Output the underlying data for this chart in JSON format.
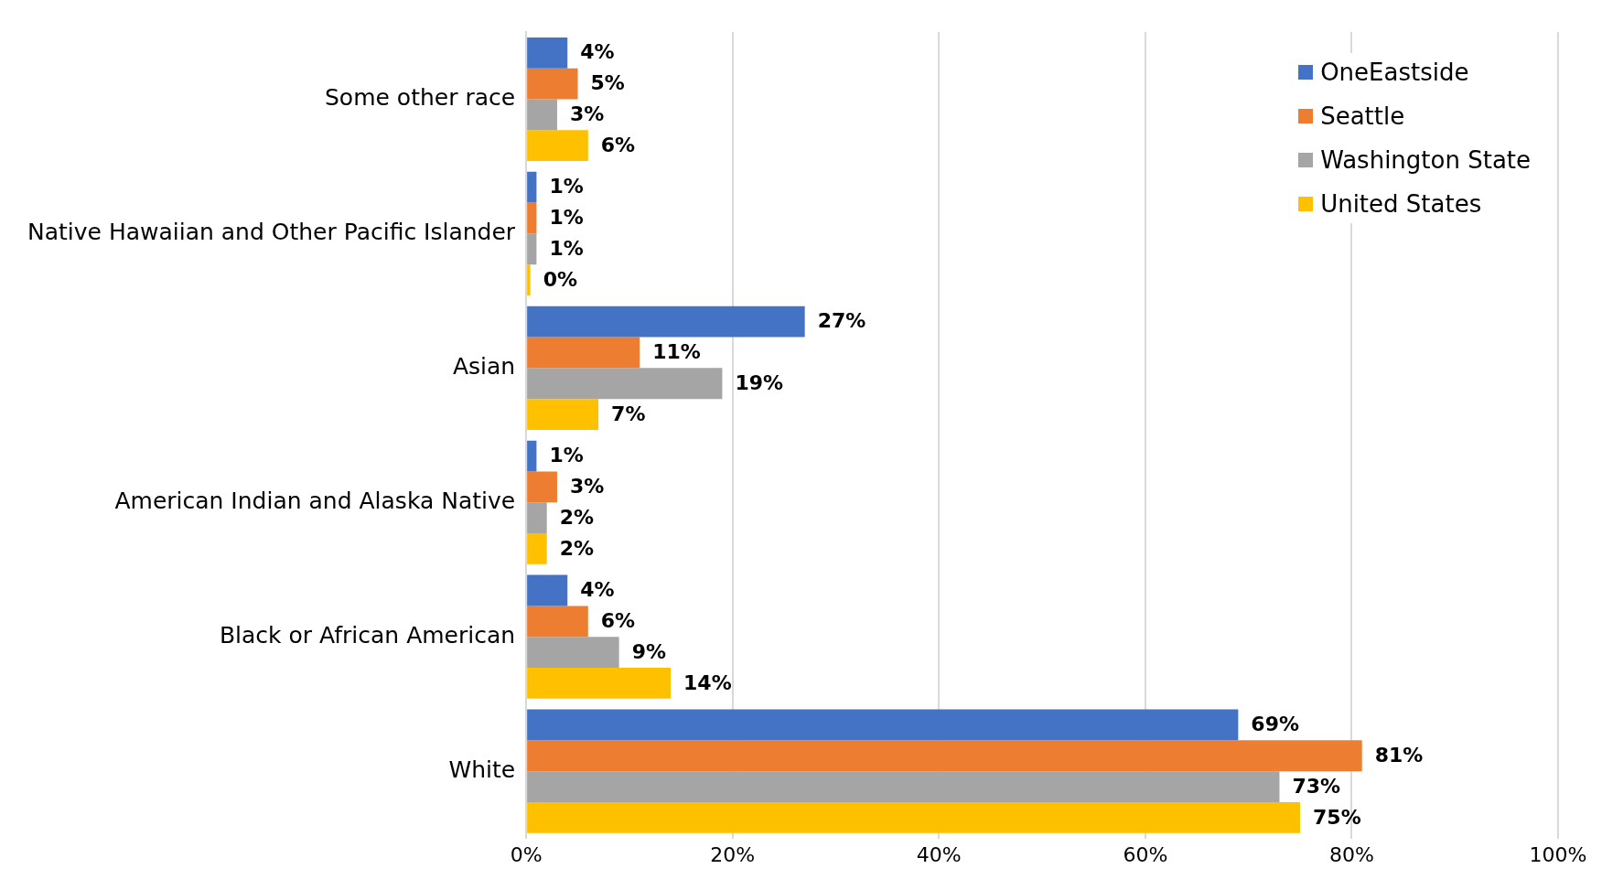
{
  "chart_data": {
    "type": "bar",
    "orientation": "horizontal",
    "categories": [
      "Some other race",
      "Native Hawaiian and Other Pacific Islander",
      "Asian",
      "American Indian and Alaska Native",
      "Black or African American",
      "White"
    ],
    "series": [
      {
        "name": "OneEastside",
        "color": "#4472c4",
        "values": [
          4,
          1,
          27,
          1,
          4,
          69
        ],
        "value_labels": [
          "4%",
          "1%",
          "27%",
          "1%",
          "4%",
          "69%"
        ]
      },
      {
        "name": "Seattle",
        "color": "#ed7d31",
        "values": [
          5,
          1,
          11,
          3,
          6,
          81
        ],
        "value_labels": [
          "5%",
          "1%",
          "11%",
          "3%",
          "6%",
          "81%"
        ]
      },
      {
        "name": "Washington State",
        "color": "#a5a5a5",
        "values": [
          3,
          1,
          19,
          2,
          9,
          73
        ],
        "value_labels": [
          "3%",
          "1%",
          "19%",
          "2%",
          "9%",
          "73%"
        ]
      },
      {
        "name": "United States",
        "color": "#ffc000",
        "values": [
          6,
          0.4,
          7,
          2,
          14,
          75
        ],
        "value_labels": [
          "6%",
          "0%",
          "7%",
          "2%",
          "14%",
          "75%"
        ]
      }
    ],
    "xlim": [
      0,
      100
    ],
    "xticks": [
      {
        "value": 0,
        "label": "0%"
      },
      {
        "value": 20,
        "label": "20%"
      },
      {
        "value": 40,
        "label": "40%"
      },
      {
        "value": 60,
        "label": "60%"
      },
      {
        "value": 80,
        "label": "80%"
      },
      {
        "value": 100,
        "label": "100%"
      }
    ],
    "grid": "x",
    "legend": "top right"
  }
}
